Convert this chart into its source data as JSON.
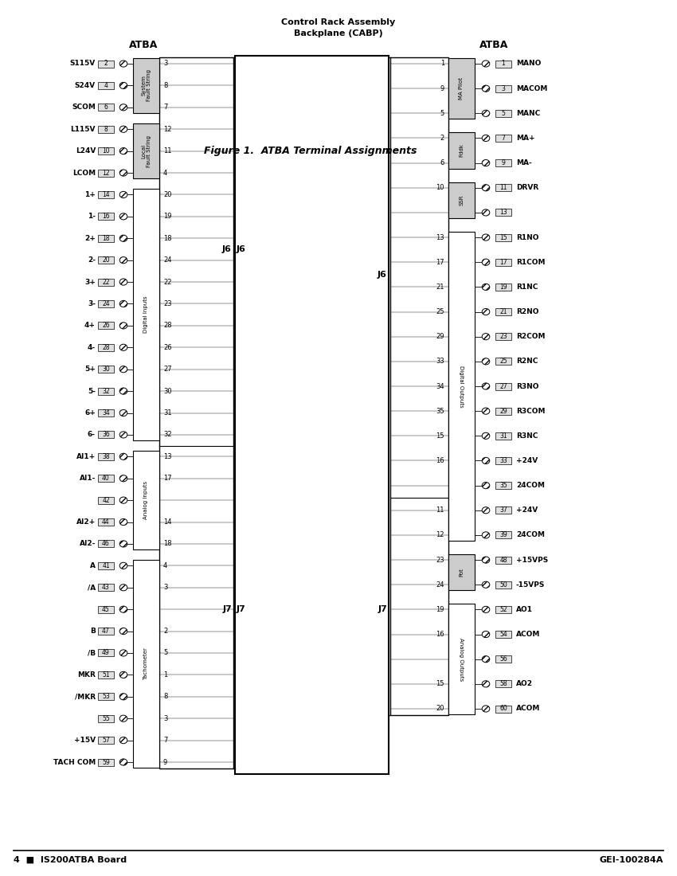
{
  "title_line1": "Control Rack Assembly",
  "title_line2": "Backplane (CABP)",
  "figure_caption": "Figure 1.  ATBA Terminal Assignments",
  "footer_left": "4  ■  IS200ATBA Board",
  "footer_right": "GEI-100284A",
  "left_atba_label": "ATBA",
  "right_atba_label": "ATBA",
  "left_terminals": [
    {
      "label": "S115V",
      "num": "2"
    },
    {
      "label": "S24V",
      "num": "4"
    },
    {
      "label": "SCOM",
      "num": "6"
    },
    {
      "label": "L115V",
      "num": "8"
    },
    {
      "label": "L24V",
      "num": "10"
    },
    {
      "label": "LCOM",
      "num": "12"
    },
    {
      "label": "1+",
      "num": "14"
    },
    {
      "label": "1-",
      "num": "16"
    },
    {
      "label": "2+",
      "num": "18"
    },
    {
      "label": "2-",
      "num": "20"
    },
    {
      "label": "3+",
      "num": "22"
    },
    {
      "label": "3-",
      "num": "24"
    },
    {
      "label": "4+",
      "num": "26"
    },
    {
      "label": "4-",
      "num": "28"
    },
    {
      "label": "5+",
      "num": "30"
    },
    {
      "label": "5-",
      "num": "32"
    },
    {
      "label": "6+",
      "num": "34"
    },
    {
      "label": "6-",
      "num": "36"
    },
    {
      "label": "AI1+",
      "num": "38"
    },
    {
      "label": "AI1-",
      "num": "40"
    },
    {
      "label": "",
      "num": "42"
    },
    {
      "label": "AI2+",
      "num": "44"
    },
    {
      "label": "AI2-",
      "num": "46"
    },
    {
      "label": "A",
      "num": "41"
    },
    {
      "label": "/A",
      "num": "43"
    },
    {
      "label": "",
      "num": "45"
    },
    {
      "label": "B",
      "num": "47"
    },
    {
      "label": "/B",
      "num": "49"
    },
    {
      "label": "MKR",
      "num": "51"
    },
    {
      "label": "/MKR",
      "num": "53"
    },
    {
      "label": "",
      "num": "55"
    },
    {
      "label": "+15V",
      "num": "57"
    },
    {
      "label": "TACH COM",
      "num": "59"
    }
  ],
  "left_group_configs": [
    {
      "si": 0,
      "ei": 2,
      "label": "System\nFault String",
      "rot": 90
    },
    {
      "si": 3,
      "ei": 5,
      "label": "Local\nFault String",
      "rot": 90
    },
    {
      "si": 6,
      "ei": 17,
      "label": "Digital Inputs",
      "rot": 90
    },
    {
      "si": 18,
      "ei": 22,
      "label": "Analog Inputs",
      "rot": 90
    },
    {
      "si": 23,
      "ei": 32,
      "label": "Tachometer",
      "rot": 90
    }
  ],
  "j6_left_nums": [
    "3",
    "8",
    "7",
    "12",
    "11",
    "4",
    "20",
    "19",
    "18",
    "24",
    "22",
    "23",
    "28",
    "26",
    "27",
    "30",
    "31",
    "32"
  ],
  "j7_left_nums": [
    "13",
    "17",
    "",
    "14",
    "18",
    "4",
    "3",
    "",
    "2",
    "5",
    "1",
    "8",
    "3",
    "7",
    "9"
  ],
  "j6_right_nums": [
    "1",
    "9",
    "5",
    "2",
    "6",
    "10",
    "",
    "13",
    "17",
    "21",
    "25",
    "29",
    "33",
    "34",
    "35",
    "15",
    "16",
    ""
  ],
  "j7_right_nums": [
    "11",
    "12",
    "23",
    "24",
    "19",
    "16",
    "",
    "15",
    "20"
  ],
  "right_terminals": [
    {
      "label": "MANO",
      "num": "1"
    },
    {
      "label": "MACOM",
      "num": "3"
    },
    {
      "label": "MANC",
      "num": "5"
    },
    {
      "label": "MA+",
      "num": "7"
    },
    {
      "label": "MA-",
      "num": "9"
    },
    {
      "label": "DRVR",
      "num": "11"
    },
    {
      "label": "",
      "num": "13"
    },
    {
      "label": "R1NO",
      "num": "15"
    },
    {
      "label": "R1COM",
      "num": "17"
    },
    {
      "label": "R1NC",
      "num": "19"
    },
    {
      "label": "R2NO",
      "num": "21"
    },
    {
      "label": "R2COM",
      "num": "23"
    },
    {
      "label": "R2NC",
      "num": "25"
    },
    {
      "label": "R3NO",
      "num": "27"
    },
    {
      "label": "R3COM",
      "num": "29"
    },
    {
      "label": "R3NC",
      "num": "31"
    },
    {
      "label": "+24V",
      "num": "33"
    },
    {
      "label": "24COM",
      "num": "35"
    },
    {
      "label": "+24V",
      "num": "37"
    },
    {
      "label": "24COM",
      "num": "39"
    },
    {
      "label": "+15VPS",
      "num": "48"
    },
    {
      "label": "-15VPS",
      "num": "50"
    },
    {
      "label": "AO1",
      "num": "52"
    },
    {
      "label": "ACOM",
      "num": "54"
    },
    {
      "label": "",
      "num": "56"
    },
    {
      "label": "AO2",
      "num": "58"
    },
    {
      "label": "ACOM",
      "num": "60"
    }
  ],
  "right_group_configs": [
    {
      "si": 0,
      "ei": 2,
      "label": "MA Pilot",
      "rot": 90
    },
    {
      "si": 3,
      "ei": 4,
      "label": "Fddk",
      "rot": 90
    },
    {
      "si": 5,
      "ei": 6,
      "label": "SSR",
      "rot": 90
    },
    {
      "si": 7,
      "ei": 19,
      "label": "Digital Outputs",
      "rot": 270
    },
    {
      "si": 20,
      "ei": 21,
      "label": "Pot",
      "rot": 90
    },
    {
      "si": 22,
      "ei": 26,
      "label": "Analog Outputs",
      "rot": 270
    }
  ],
  "bg_color": "#ffffff",
  "group_fill_gray": "#cccccc",
  "group_fill_white": "#ffffff"
}
